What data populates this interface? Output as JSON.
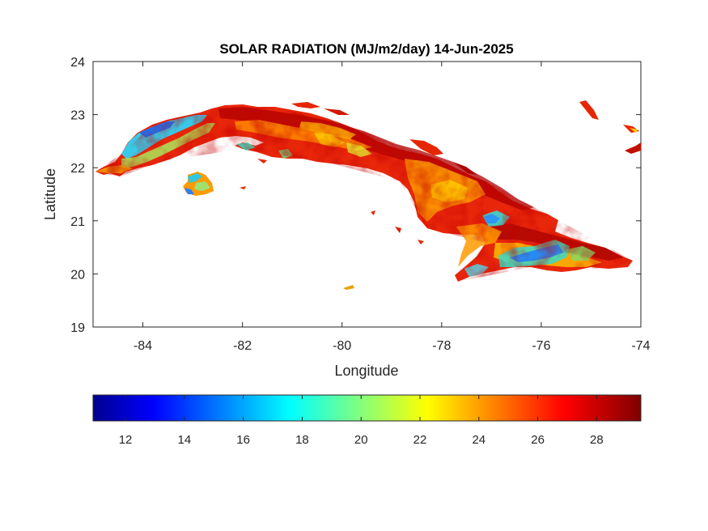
{
  "title": "SOLAR RADIATION (MJ/m2/day) 14-Jun-2025",
  "x_axis": {
    "label": "Longitude",
    "range": [
      -85,
      -74
    ],
    "ticks": [
      -84,
      -82,
      -80,
      -78,
      -76,
      -74
    ]
  },
  "y_axis": {
    "label": "Latitude",
    "range": [
      19,
      24
    ],
    "ticks": [
      19,
      20,
      21,
      22,
      23,
      24
    ]
  },
  "colorbar": {
    "colormap": "jet",
    "range": [
      10.9,
      29.5
    ],
    "ticks": [
      12,
      14,
      16,
      18,
      20,
      22,
      24,
      26,
      28
    ],
    "orientation": "horizontal",
    "placement": "below map"
  },
  "map": {
    "region": "Cuba",
    "variable": "Solar radiation",
    "units": "MJ/m2/day",
    "date": "14-Jun-2025",
    "background": "white (no data over sea)"
  },
  "colors": {
    "high": "#8b0000",
    "mid_high": "#e52600",
    "mid": "#ffd000",
    "low_mid": "#2fd6c8",
    "low": "#1e78ff"
  }
}
